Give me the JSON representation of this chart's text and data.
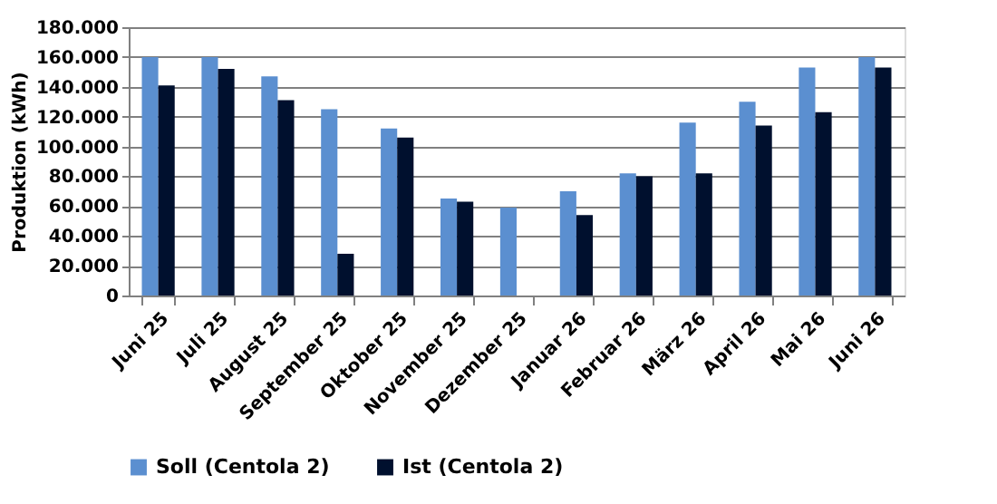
{
  "chart_data": {
    "type": "bar",
    "ylabel": "Produktion (kWh)",
    "categories": [
      "Juni 25",
      "Juli 25",
      "August 25",
      "September 25",
      "Oktober 25",
      "November 25",
      "Dezember 25",
      "Januar 26",
      "Februar 26",
      "März 26",
      "April 26",
      "Mai 26",
      "Juni 26"
    ],
    "series": [
      {
        "name": "Soll (Centola 2)",
        "color": "#5b8fd0",
        "values": [
          160000,
          160000,
          147000,
          125000,
          112000,
          65000,
          59000,
          70000,
          82000,
          116000,
          130000,
          153000,
          160000
        ]
      },
      {
        "name": "Ist (Centola 2)",
        "color": "#00102e",
        "values": [
          141000,
          152000,
          131000,
          28000,
          106000,
          63000,
          null,
          54000,
          80000,
          82000,
          114000,
          123000,
          153000
        ]
      }
    ],
    "ylim": [
      0,
      180000
    ],
    "yticks": [
      0,
      {
        "value": 20000,
        "label": "20.000"
      },
      {
        "value": 40000,
        "label": "40.000"
      },
      {
        "value": 60000,
        "label": "60.000"
      },
      {
        "value": 80000,
        "label": "80.000"
      },
      {
        "value": 100000,
        "label": "100.000"
      },
      {
        "value": 120000,
        "label": "120.000"
      },
      {
        "value": 140000,
        "label": "140.000"
      },
      {
        "value": 160000,
        "label": "160.000"
      },
      {
        "value": 180000,
        "label": "180.000"
      }
    ],
    "grid": "y",
    "legend": "bottom"
  }
}
